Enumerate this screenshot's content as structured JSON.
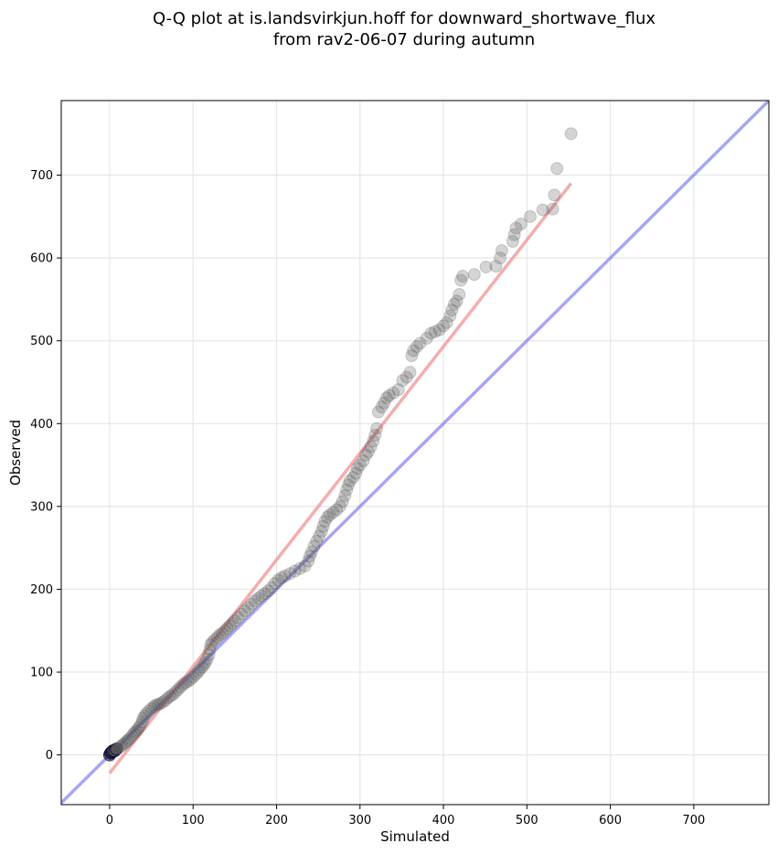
{
  "chart_data": {
    "type": "scatter",
    "title_line1": "Q-Q plot at is.landsvirkjun.hoff for downward_shortwave_flux",
    "title_line2": "from rav2-06-07 during autumn",
    "xlabel": "Simulated",
    "ylabel": "Observed",
    "xlim": [
      -58,
      790
    ],
    "ylim": [
      -60,
      790
    ],
    "xticks": [
      0,
      100,
      200,
      300,
      400,
      500,
      600,
      700
    ],
    "yticks": [
      0,
      100,
      200,
      300,
      400,
      500,
      600,
      700
    ],
    "grid": true,
    "colors": {
      "points": "#555555",
      "identity_line": "#6b6bef",
      "fit_line": "#f08a8a",
      "low_point_edge": "#000033"
    },
    "identity_line": {
      "from": [
        -58,
        -58
      ],
      "to": [
        790,
        790
      ]
    },
    "fit_line": {
      "from": [
        0,
        -22
      ],
      "to": [
        553,
        690
      ]
    },
    "points": [
      [
        0,
        0
      ],
      [
        1,
        2
      ],
      [
        2,
        3
      ],
      [
        3,
        4
      ],
      [
        4,
        5
      ],
      [
        6,
        5
      ],
      [
        8,
        7
      ],
      [
        10,
        8
      ],
      [
        13,
        10
      ],
      [
        15,
        12
      ],
      [
        18,
        14
      ],
      [
        20,
        16
      ],
      [
        22,
        18
      ],
      [
        24,
        20
      ],
      [
        27,
        23
      ],
      [
        29,
        26
      ],
      [
        31,
        28
      ],
      [
        33,
        30
      ],
      [
        35,
        33
      ],
      [
        37,
        36
      ],
      [
        39,
        40
      ],
      [
        40,
        44
      ],
      [
        42,
        47
      ],
      [
        44,
        50
      ],
      [
        47,
        53
      ],
      [
        50,
        56
      ],
      [
        53,
        58
      ],
      [
        55,
        60
      ],
      [
        58,
        61
      ],
      [
        61,
        62
      ],
      [
        64,
        64
      ],
      [
        67,
        66
      ],
      [
        70,
        69
      ],
      [
        73,
        71
      ],
      [
        76,
        73
      ],
      [
        79,
        76
      ],
      [
        82,
        79
      ],
      [
        85,
        82
      ],
      [
        88,
        85
      ],
      [
        91,
        87
      ],
      [
        94,
        89
      ],
      [
        97,
        91
      ],
      [
        100,
        94
      ],
      [
        103,
        97
      ],
      [
        106,
        100
      ],
      [
        108,
        103
      ],
      [
        111,
        106
      ],
      [
        113,
        109
      ],
      [
        115,
        112
      ],
      [
        117,
        116
      ],
      [
        119,
        121
      ],
      [
        120,
        127
      ],
      [
        121,
        133
      ],
      [
        123,
        136
      ],
      [
        126,
        139
      ],
      [
        129,
        142
      ],
      [
        132,
        145
      ],
      [
        135,
        147
      ],
      [
        138,
        150
      ],
      [
        141,
        153
      ],
      [
        144,
        156
      ],
      [
        147,
        159
      ],
      [
        150,
        162
      ],
      [
        154,
        166
      ],
      [
        158,
        170
      ],
      [
        162,
        174
      ],
      [
        166,
        178
      ],
      [
        170,
        182
      ],
      [
        174,
        186
      ],
      [
        178,
        189
      ],
      [
        182,
        192
      ],
      [
        186,
        195
      ],
      [
        190,
        198
      ],
      [
        194,
        202
      ],
      [
        198,
        207
      ],
      [
        202,
        211
      ],
      [
        206,
        214
      ],
      [
        210,
        216
      ],
      [
        216,
        219
      ],
      [
        222,
        222
      ],
      [
        228,
        225
      ],
      [
        234,
        228
      ],
      [
        238,
        234
      ],
      [
        240,
        240
      ],
      [
        242,
        245
      ],
      [
        245,
        252
      ],
      [
        248,
        258
      ],
      [
        251,
        264
      ],
      [
        254,
        270
      ],
      [
        256,
        276
      ],
      [
        258,
        282
      ],
      [
        261,
        287
      ],
      [
        264,
        290
      ],
      [
        268,
        293
      ],
      [
        272,
        296
      ],
      [
        276,
        300
      ],
      [
        279,
        306
      ],
      [
        282,
        313
      ],
      [
        284,
        320
      ],
      [
        286,
        326
      ],
      [
        288,
        331
      ],
      [
        292,
        335
      ],
      [
        295,
        340
      ],
      [
        297,
        346
      ],
      [
        300,
        350
      ],
      [
        304,
        355
      ],
      [
        307,
        362
      ],
      [
        310,
        366
      ],
      [
        313,
        372
      ],
      [
        316,
        379
      ],
      [
        318,
        386
      ],
      [
        320,
        394
      ],
      [
        322,
        414
      ],
      [
        326,
        420
      ],
      [
        329,
        425
      ],
      [
        332,
        431
      ],
      [
        335,
        434
      ],
      [
        340,
        437
      ],
      [
        346,
        441
      ],
      [
        351,
        452
      ],
      [
        356,
        456
      ],
      [
        360,
        462
      ],
      [
        362,
        482
      ],
      [
        364,
        488
      ],
      [
        368,
        493
      ],
      [
        372,
        497
      ],
      [
        380,
        503
      ],
      [
        385,
        509
      ],
      [
        390,
        511
      ],
      [
        395,
        513
      ],
      [
        400,
        518
      ],
      [
        404,
        522
      ],
      [
        408,
        530
      ],
      [
        410,
        537
      ],
      [
        413,
        544
      ],
      [
        416,
        548
      ],
      [
        419,
        556
      ],
      [
        421,
        573
      ],
      [
        423,
        578
      ],
      [
        437,
        580
      ],
      [
        451,
        589
      ],
      [
        463,
        590
      ],
      [
        468,
        600
      ],
      [
        470,
        609
      ],
      [
        483,
        620
      ],
      [
        485,
        628
      ],
      [
        487,
        636
      ],
      [
        493,
        641
      ],
      [
        504,
        650
      ],
      [
        519,
        658
      ],
      [
        531,
        659
      ],
      [
        533,
        676
      ],
      [
        536,
        708
      ],
      [
        553,
        750
      ]
    ]
  }
}
